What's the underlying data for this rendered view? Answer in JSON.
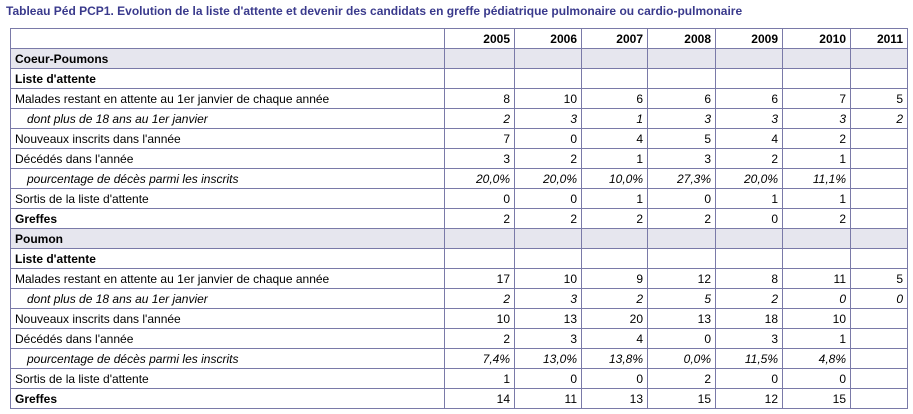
{
  "title": "Tableau Péd PCP1. Evolution de la liste d'attente et devenir des candidats en greffe pédiatrique pulmonaire ou cardio-pulmonaire",
  "years": [
    "2005",
    "2006",
    "2007",
    "2008",
    "2009",
    "2010",
    "2011"
  ],
  "rows": [
    {
      "type": "section",
      "label": "Coeur-Poumons",
      "values": [
        "",
        "",
        "",
        "",
        "",
        "",
        ""
      ]
    },
    {
      "type": "sub",
      "label": "Liste d'attente",
      "values": [
        "",
        "",
        "",
        "",
        "",
        "",
        ""
      ]
    },
    {
      "type": "normal",
      "label": "Malades restant en attente au 1er janvier de chaque année",
      "values": [
        "8",
        "10",
        "6",
        "6",
        "6",
        "7",
        "5"
      ]
    },
    {
      "type": "italic",
      "label": "dont plus de 18 ans au 1er janvier",
      "values": [
        "2",
        "3",
        "1",
        "3",
        "3",
        "3",
        "2"
      ]
    },
    {
      "type": "normal",
      "label": "Nouveaux inscrits dans l'année",
      "values": [
        "7",
        "0",
        "4",
        "5",
        "4",
        "2",
        ""
      ]
    },
    {
      "type": "normal",
      "label": "Décédés dans l'année",
      "values": [
        "3",
        "2",
        "1",
        "3",
        "2",
        "1",
        ""
      ]
    },
    {
      "type": "italic",
      "label": "pourcentage de décès parmi les inscrits",
      "values": [
        "20,0%",
        "20,0%",
        "10,0%",
        "27,3%",
        "20,0%",
        "11,1%",
        ""
      ]
    },
    {
      "type": "normal",
      "label": "Sortis de la liste d'attente",
      "values": [
        "0",
        "0",
        "1",
        "0",
        "1",
        "1",
        ""
      ]
    },
    {
      "type": "bold",
      "label": "Greffes",
      "values": [
        "2",
        "2",
        "2",
        "2",
        "0",
        "2",
        ""
      ]
    },
    {
      "type": "section",
      "label": "Poumon",
      "values": [
        "",
        "",
        "",
        "",
        "",
        "",
        ""
      ]
    },
    {
      "type": "sub",
      "label": "Liste d'attente",
      "values": [
        "",
        "",
        "",
        "",
        "",
        "",
        ""
      ]
    },
    {
      "type": "normal",
      "label": "Malades restant en attente au 1er janvier de chaque année",
      "values": [
        "17",
        "10",
        "9",
        "12",
        "8",
        "11",
        "5"
      ]
    },
    {
      "type": "italic",
      "label": "dont plus de 18 ans au 1er janvier",
      "values": [
        "2",
        "3",
        "2",
        "5",
        "2",
        "0",
        "0"
      ]
    },
    {
      "type": "normal",
      "label": "Nouveaux inscrits dans l'année",
      "values": [
        "10",
        "13",
        "20",
        "13",
        "18",
        "10",
        ""
      ]
    },
    {
      "type": "normal",
      "label": "Décédés dans l'année",
      "values": [
        "2",
        "3",
        "4",
        "0",
        "3",
        "1",
        ""
      ]
    },
    {
      "type": "italic",
      "label": "pourcentage de décès parmi les inscrits",
      "values": [
        "7,4%",
        "13,0%",
        "13,8%",
        "0,0%",
        "11,5%",
        "4,8%",
        ""
      ]
    },
    {
      "type": "normal",
      "label": "Sortis de la liste d'attente",
      "values": [
        "1",
        "0",
        "0",
        "2",
        "0",
        "0",
        ""
      ]
    },
    {
      "type": "bold",
      "label": "Greffes",
      "values": [
        "14",
        "11",
        "13",
        "15",
        "12",
        "15",
        ""
      ]
    }
  ]
}
